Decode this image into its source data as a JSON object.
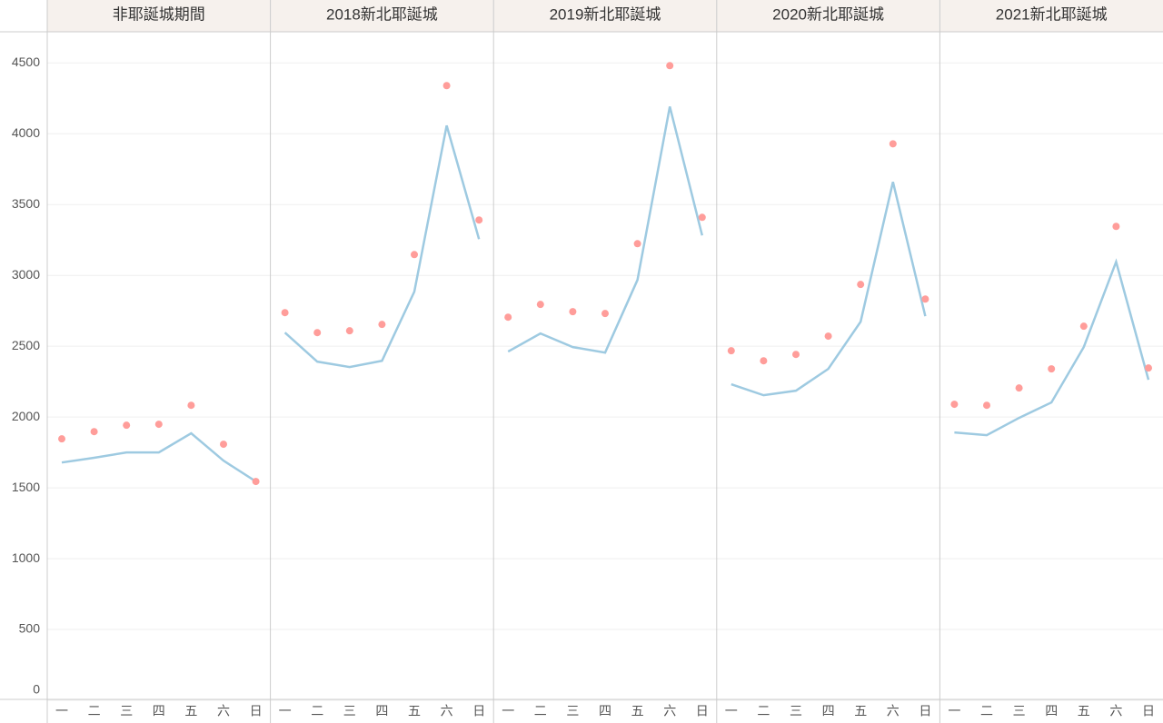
{
  "chart_data": {
    "type": "line",
    "categories": [
      "一",
      "二",
      "三",
      "四",
      "五",
      "六",
      "日"
    ],
    "ylim": [
      0,
      4720
    ],
    "yticks": [
      0,
      500,
      1000,
      1500,
      2000,
      2500,
      3000,
      3500,
      4000,
      4500
    ],
    "grid": true,
    "panels": [
      {
        "title": "非耶誕城期間",
        "series": [
          {
            "mark": "line",
            "color": "#9ecae1",
            "values": [
              1679,
              1712,
              1750,
              1750,
              1885,
              1692,
              1545
            ]
          },
          {
            "mark": "dot",
            "color": "#ff9d9a",
            "values": [
              1846,
              1897,
              1942,
              1949,
              2083,
              1808,
              1545
            ]
          }
        ]
      },
      {
        "title": "2018新北耶誕城",
        "series": [
          {
            "mark": "line",
            "color": "#9ecae1",
            "values": [
              2596,
              2391,
              2353,
              2397,
              2885,
              4058,
              3256
            ]
          },
          {
            "mark": "dot",
            "color": "#ff9d9a",
            "values": [
              2737,
              2596,
              2609,
              2654,
              3147,
              4340,
              3391
            ]
          }
        ]
      },
      {
        "title": "2019新北耶誕城",
        "series": [
          {
            "mark": "line",
            "color": "#9ecae1",
            "values": [
              2462,
              2590,
              2494,
              2455,
              2968,
              4192,
              3282
            ]
          },
          {
            "mark": "dot",
            "color": "#ff9d9a",
            "values": [
              2705,
              2795,
              2744,
              2731,
              3224,
              4481,
              3410
            ]
          }
        ]
      },
      {
        "title": "2020新北耶誕城",
        "series": [
          {
            "mark": "line",
            "color": "#9ecae1",
            "values": [
              2231,
              2154,
              2186,
              2340,
              2673,
              3660,
              2712
            ]
          },
          {
            "mark": "dot",
            "color": "#ff9d9a",
            "values": [
              2468,
              2397,
              2442,
              2571,
              2936,
              3929,
              2833
            ]
          }
        ]
      },
      {
        "title": "2021新北耶誕城",
        "series": [
          {
            "mark": "line",
            "color": "#9ecae1",
            "values": [
              1891,
              1872,
              1994,
              2103,
              2494,
              3096,
              2263
            ]
          },
          {
            "mark": "dot",
            "color": "#ff9d9a",
            "values": [
              2090,
              2083,
              2205,
              2340,
              2641,
              3346,
              2346
            ]
          }
        ]
      }
    ]
  }
}
